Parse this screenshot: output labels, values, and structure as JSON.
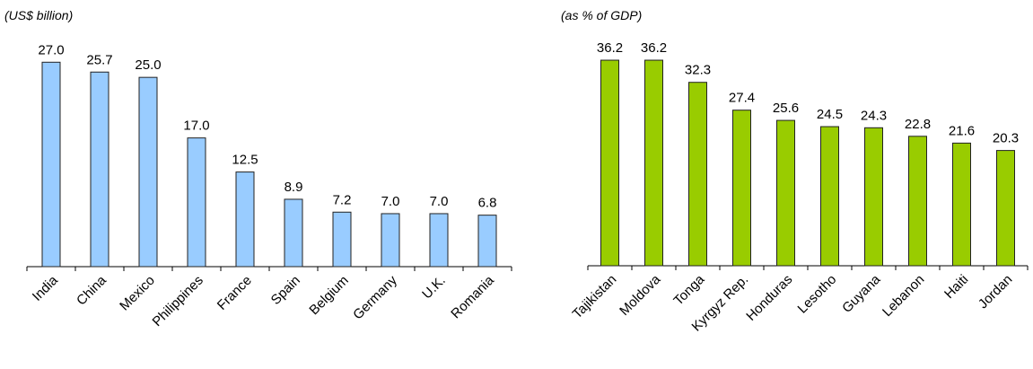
{
  "chart_data": [
    {
      "type": "bar",
      "subtitle": "(US$ billion)",
      "categories": [
        "India",
        "China",
        "Mexico",
        "Philippines",
        "France",
        "Spain",
        "Belgium",
        "Germany",
        "U.K.",
        "Romania"
      ],
      "values": [
        27.0,
        25.7,
        25.0,
        17.0,
        12.5,
        8.9,
        7.2,
        7.0,
        7.0,
        6.8
      ],
      "value_labels": [
        "27.0",
        "25.7",
        "25.0",
        "17.0",
        "12.5",
        "8.9",
        "7.2",
        "7.0",
        "7.0",
        "6.8"
      ],
      "color": "#99ccff",
      "ylim": [
        0,
        30
      ]
    },
    {
      "type": "bar",
      "subtitle": "(as % of GDP)",
      "categories": [
        "Tajikistan",
        "Moldova",
        "Tonga",
        "Kyrgyz Rep.",
        "Honduras",
        "Lesotho",
        "Guyana",
        "Lebanon",
        "Haiti",
        "Jordan"
      ],
      "values": [
        36.2,
        36.2,
        32.3,
        27.4,
        25.6,
        24.5,
        24.3,
        22.8,
        21.6,
        20.3
      ],
      "value_labels": [
        "36.2",
        "36.2",
        "32.3",
        "27.4",
        "25.6",
        "24.5",
        "24.3",
        "22.8",
        "21.6",
        "20.3"
      ],
      "color": "#99cc00",
      "ylim": [
        0,
        40
      ]
    }
  ]
}
